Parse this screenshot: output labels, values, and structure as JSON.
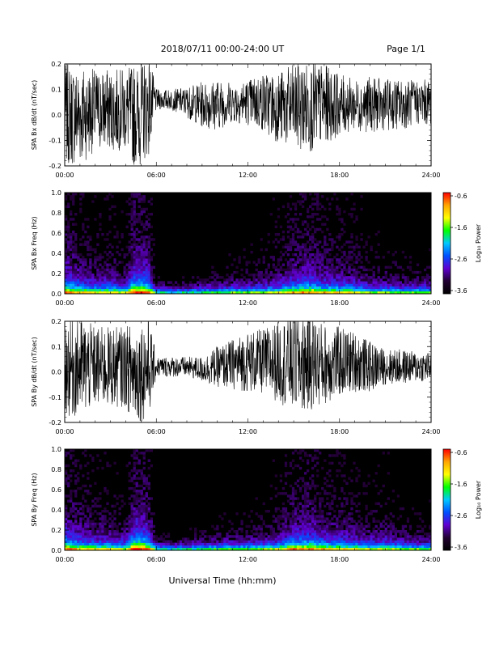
{
  "header": {
    "title": "2018/07/11   00:00-24:00 UT",
    "page": "Page 1/1"
  },
  "xaxis": {
    "ticks": [
      "00:00",
      "06:00",
      "12:00",
      "18:00",
      "24:00"
    ],
    "title": "Universal Time (hh:mm)"
  },
  "colorbar": {
    "label": "Log₁₀ Power",
    "ticks": [
      "-0.6",
      "-1.6",
      "-2.6",
      "-3.6"
    ],
    "colors": [
      "#ff0000",
      "#ffa500",
      "#ffff00",
      "#00ff00",
      "#00c8ff",
      "#0050ff",
      "#6000d0",
      "#200030",
      "#000000"
    ]
  },
  "chart_data": [
    {
      "type": "line",
      "ylabel": "SPA Bx dB/dt (nT/sec)",
      "yticks": [
        "0.2",
        "0.1",
        "0.0",
        "-0.1",
        "-0.2"
      ],
      "ylim": [
        -0.2,
        0.2
      ],
      "xlim": [
        0,
        24
      ],
      "x_unit": "hours UT",
      "series_envelope": {
        "x": [
          0,
          1,
          2,
          3,
          4,
          4.5,
          4.9,
          5.5,
          6,
          7,
          8,
          9,
          10,
          11,
          12,
          13,
          14,
          15,
          16,
          17,
          18,
          19,
          20,
          21,
          22,
          23,
          24
        ],
        "center": [
          0.0,
          0.0,
          0.02,
          0.02,
          0.02,
          0.0,
          0.0,
          0.04,
          0.06,
          0.06,
          0.05,
          0.04,
          0.04,
          0.05,
          0.05,
          0.05,
          0.03,
          0.03,
          0.03,
          0.04,
          0.04,
          0.04,
          0.04,
          0.04,
          0.04,
          0.05,
          0.05
        ],
        "amplitude": [
          0.2,
          0.2,
          0.16,
          0.16,
          0.16,
          0.2,
          0.2,
          0.2,
          0.04,
          0.04,
          0.06,
          0.09,
          0.1,
          0.08,
          0.09,
          0.12,
          0.14,
          0.17,
          0.18,
          0.16,
          0.12,
          0.1,
          0.11,
          0.1,
          0.1,
          0.09,
          0.09
        ]
      }
    },
    {
      "type": "heatmap",
      "ylabel": "SPA Bx Freq (Hz)",
      "yticks": [
        "1.0",
        "0.8",
        "0.6",
        "0.4",
        "0.2",
        "0.0"
      ],
      "ylim": [
        0,
        1.0
      ],
      "xlim": [
        0,
        24
      ],
      "zlim": [
        -3.6,
        -0.6
      ],
      "activity_by_hour": {
        "x": [
          0,
          1,
          2,
          3,
          4,
          4.5,
          4.9,
          5.5,
          6,
          7,
          8,
          9,
          10,
          11,
          12,
          13,
          14,
          15,
          16,
          17,
          18,
          19,
          20,
          21,
          22,
          23,
          24
        ],
        "level": [
          0.8,
          0.6,
          0.5,
          0.5,
          0.4,
          0.9,
          0.9,
          0.8,
          0.15,
          0.1,
          0.15,
          0.2,
          0.25,
          0.3,
          0.3,
          0.35,
          0.45,
          0.65,
          0.75,
          0.6,
          0.55,
          0.5,
          0.35,
          0.35,
          0.3,
          0.3,
          0.3
        ]
      }
    },
    {
      "type": "line",
      "ylabel": "SPA By dB/dt (nT/sec)",
      "yticks": [
        "0.2",
        "0.1",
        "0.0",
        "-0.1",
        "-0.2"
      ],
      "ylim": [
        -0.2,
        0.2
      ],
      "xlim": [
        0,
        24
      ],
      "x_unit": "hours UT",
      "series_envelope": {
        "x": [
          0,
          1,
          2,
          3,
          4,
          4.5,
          4.9,
          5.5,
          6,
          7,
          8,
          9,
          10,
          11,
          12,
          13,
          14,
          15,
          16,
          17,
          18,
          19,
          20,
          21,
          22,
          23,
          24
        ],
        "center": [
          0.02,
          0.02,
          0.02,
          0.02,
          0.02,
          0.0,
          0.0,
          0.02,
          0.02,
          0.02,
          0.02,
          0.01,
          0.02,
          0.03,
          0.04,
          0.04,
          0.04,
          0.04,
          0.04,
          0.03,
          0.04,
          0.04,
          0.02,
          0.02,
          0.02,
          0.02,
          0.02
        ],
        "amplitude": [
          0.2,
          0.2,
          0.16,
          0.16,
          0.16,
          0.2,
          0.2,
          0.2,
          0.04,
          0.04,
          0.04,
          0.05,
          0.08,
          0.1,
          0.12,
          0.13,
          0.16,
          0.2,
          0.2,
          0.16,
          0.14,
          0.12,
          0.1,
          0.07,
          0.07,
          0.06,
          0.06
        ]
      }
    },
    {
      "type": "heatmap",
      "ylabel": "SPA By Freq (Hz)",
      "yticks": [
        "1.0",
        "0.8",
        "0.6",
        "0.4",
        "0.2",
        "0.0"
      ],
      "ylim": [
        0,
        1.0
      ],
      "xlim": [
        0,
        24
      ],
      "zlim": [
        -3.6,
        -0.6
      ],
      "activity_by_hour": {
        "x": [
          0,
          1,
          2,
          3,
          4,
          4.5,
          4.9,
          5.5,
          6,
          7,
          8,
          9,
          10,
          11,
          12,
          13,
          14,
          15,
          16,
          17,
          18,
          19,
          20,
          21,
          22,
          23,
          24
        ],
        "level": [
          0.8,
          0.6,
          0.5,
          0.5,
          0.4,
          0.9,
          0.9,
          0.8,
          0.15,
          0.1,
          0.15,
          0.2,
          0.25,
          0.3,
          0.3,
          0.35,
          0.45,
          0.7,
          0.75,
          0.6,
          0.55,
          0.5,
          0.4,
          0.45,
          0.35,
          0.3,
          0.3
        ]
      }
    }
  ]
}
